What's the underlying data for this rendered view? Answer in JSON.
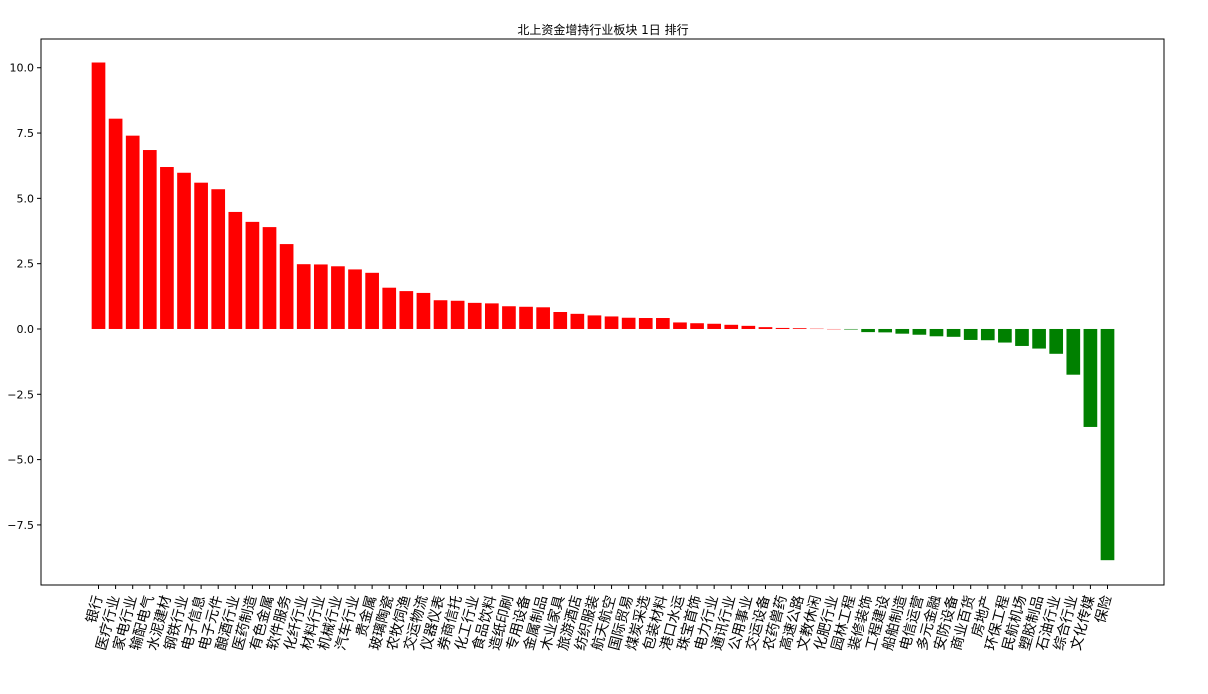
{
  "chart_data": {
    "type": "bar",
    "title": "北上资金增持行业板块 1日 排行",
    "xlabel": "",
    "ylabel": "",
    "ylim": [
      -9.8,
      11.1
    ],
    "yticks": [
      10.0,
      7.5,
      5.0,
      2.5,
      0.0,
      -2.5,
      -5.0,
      -7.5
    ],
    "ytick_labels": [
      "10.0",
      "7.5",
      "5.0",
      "2.5",
      "0.0",
      "−2.5",
      "−5.0",
      "−7.5"
    ],
    "grid": false,
    "colors": {
      "positive": "#ff0000",
      "negative": "#008000",
      "axis": "#000000",
      "background": "#ffffff"
    },
    "categories": [
      "银行",
      "医疗行业",
      "家电行业",
      "输配电气",
      "水泥建材",
      "钢铁行业",
      "电子信息",
      "电子元件",
      "酿酒行业",
      "医药制造",
      "有色金属",
      "软件服务",
      "化纤行业",
      "材料行业",
      "机械行业",
      "汽车行业",
      "贵金属",
      "玻璃陶瓷",
      "农牧饲渔",
      "交运物流",
      "仪器仪表",
      "券商信托",
      "化工行业",
      "食品饮料",
      "造纸印刷",
      "专用设备",
      "金属制品",
      "木业家具",
      "旅游酒店",
      "纺织服装",
      "航天航空",
      "国际贸易",
      "煤炭采选",
      "包装材料",
      "港口水运",
      "珠宝首饰",
      "电力行业",
      "通讯行业",
      "公用事业",
      "交运设备",
      "农药兽药",
      "高速公路",
      "文教休闲",
      "化肥行业",
      "园林工程",
      "装修装饰",
      "工程建设",
      "船舶制造",
      "电信运营",
      "多元金融",
      "安防设备",
      "商业百货",
      "房地产",
      "环保工程",
      "民航机场",
      "塑胶制品",
      "石油行业",
      "综合行业",
      "文化传媒",
      "保险"
    ],
    "values": [
      10.2,
      8.05,
      7.4,
      6.85,
      6.2,
      5.98,
      5.6,
      5.35,
      4.48,
      4.1,
      3.9,
      3.25,
      2.48,
      2.47,
      2.4,
      2.28,
      2.15,
      1.58,
      1.45,
      1.38,
      1.1,
      1.08,
      1.0,
      0.98,
      0.87,
      0.85,
      0.83,
      0.65,
      0.58,
      0.52,
      0.48,
      0.43,
      0.42,
      0.42,
      0.25,
      0.22,
      0.2,
      0.16,
      0.12,
      0.07,
      0.04,
      0.03,
      0.01,
      0.0,
      -0.02,
      -0.12,
      -0.13,
      -0.18,
      -0.22,
      -0.28,
      -0.3,
      -0.42,
      -0.43,
      -0.52,
      -0.65,
      -0.75,
      -0.95,
      -1.75,
      -3.75,
      -8.85
    ]
  }
}
